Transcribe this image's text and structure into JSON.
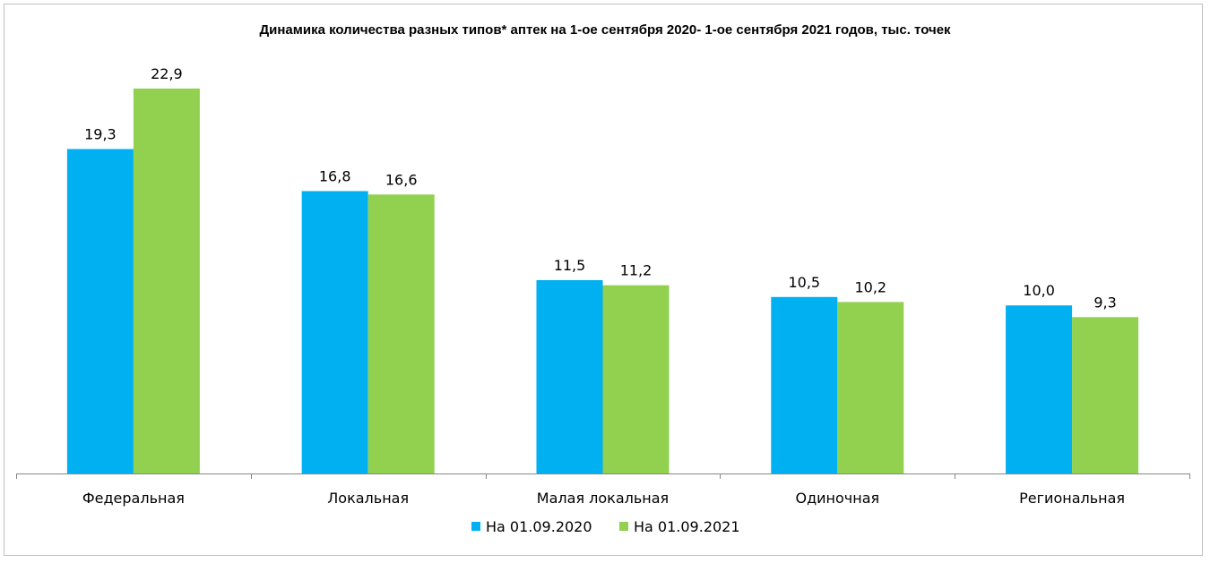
{
  "chart_data": {
    "type": "bar",
    "title": "Динамика количества разных типов* аптек на 1-ое сентября 2020- 1-ое сентября 2021 годов, тыс. точек",
    "categories": [
      "Федеральная",
      "Локальная",
      "Малая локальная",
      "Одиночная",
      "Региональная"
    ],
    "series": [
      {
        "name": "На 01.09.2020",
        "color": "#00b0f0",
        "values": [
          19.3,
          16.8,
          11.5,
          10.5,
          10.0
        ],
        "labels": [
          "19,3",
          "16,8",
          "11,5",
          "10,5",
          "10,0"
        ]
      },
      {
        "name": "На 01.09.2021",
        "color": "#92d050",
        "values": [
          22.9,
          16.6,
          11.2,
          10.2,
          9.3
        ],
        "labels": [
          "22,9",
          "16,6",
          "11,2",
          "10,2",
          "9,3"
        ]
      }
    ],
    "ylim": [
      0,
      24
    ],
    "grid": false,
    "legend": "bottom"
  }
}
